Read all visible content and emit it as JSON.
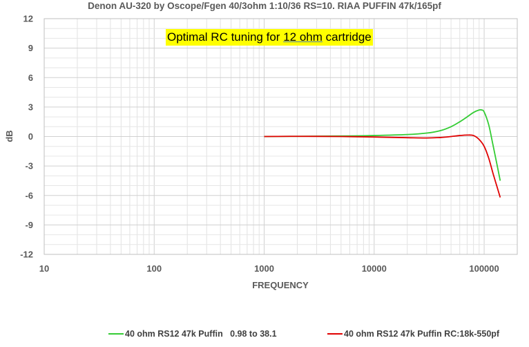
{
  "chart_data": {
    "type": "line",
    "title": "Denon AU-320 by Oscope/Fgen 40/3ohm 1:10/36 RS=10. RIAA PUFFIN 47k/165pf",
    "xlabel": "FREQUENCY",
    "ylabel": "dB",
    "x_scale": "log",
    "xlim": [
      10,
      200000
    ],
    "ylim": [
      -12,
      12
    ],
    "x_ticks": [
      "10",
      "100",
      "1000",
      "10000",
      "100000"
    ],
    "y_ticks": [
      "12",
      "9",
      "6",
      "3",
      "0",
      "-3",
      "-6",
      "-9",
      "-12"
    ],
    "grid": true,
    "legend_position": "bottom",
    "annotation": {
      "before": "Optimal RC tuning for ",
      "highlight": "12 ohm",
      "after": " cartridge"
    },
    "series": [
      {
        "name": "40 ohm RS12 47k Puffin   0.98 to 38.1",
        "color": "#33cc33",
        "x": [
          1000,
          2000,
          5000,
          10000,
          20000,
          30000,
          40000,
          50000,
          60000,
          70000,
          80000,
          90000,
          95000,
          100000,
          110000,
          120000,
          130000,
          140000
        ],
        "y": [
          0.0,
          0.02,
          0.05,
          0.1,
          0.2,
          0.35,
          0.6,
          1.0,
          1.5,
          2.0,
          2.45,
          2.7,
          2.7,
          2.5,
          1.2,
          -0.8,
          -2.7,
          -4.5
        ]
      },
      {
        "name": "40 ohm RS12 47k Puffin RC:18k-550pf",
        "color": "#e00000",
        "x": [
          1000,
          2000,
          5000,
          10000,
          20000,
          30000,
          40000,
          50000,
          60000,
          70000,
          80000,
          90000,
          100000,
          110000,
          120000,
          130000,
          140000
        ],
        "y": [
          0.0,
          0.02,
          0.0,
          -0.05,
          -0.12,
          -0.15,
          -0.1,
          0.0,
          0.1,
          0.15,
          0.1,
          -0.3,
          -1.0,
          -2.2,
          -3.7,
          -5.0,
          -6.2
        ]
      }
    ]
  }
}
